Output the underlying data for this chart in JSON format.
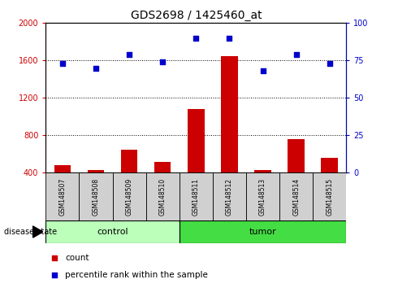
{
  "title": "GDS2698 / 1425460_at",
  "samples": [
    "GSM148507",
    "GSM148508",
    "GSM148509",
    "GSM148510",
    "GSM148511",
    "GSM148512",
    "GSM148513",
    "GSM148514",
    "GSM148515"
  ],
  "count": [
    480,
    430,
    650,
    520,
    1080,
    1650,
    430,
    760,
    560
  ],
  "percentile": [
    73,
    70,
    79,
    74,
    90,
    90,
    68,
    79,
    73
  ],
  "groups": [
    "control",
    "control",
    "control",
    "control",
    "tumor",
    "tumor",
    "tumor",
    "tumor",
    "tumor"
  ],
  "ylim_left": [
    400,
    2000
  ],
  "ylim_right": [
    0,
    100
  ],
  "yticks_left": [
    400,
    800,
    1200,
    1600,
    2000
  ],
  "yticks_right": [
    0,
    25,
    50,
    75,
    100
  ],
  "bar_color": "#cc0000",
  "dot_color": "#0000cc",
  "control_color": "#bbffbb",
  "tumor_color": "#44dd44",
  "label_bg_color": "#d0d0d0",
  "legend_count_label": "count",
  "legend_pct_label": "percentile rank within the sample",
  "disease_state_label": "disease state"
}
